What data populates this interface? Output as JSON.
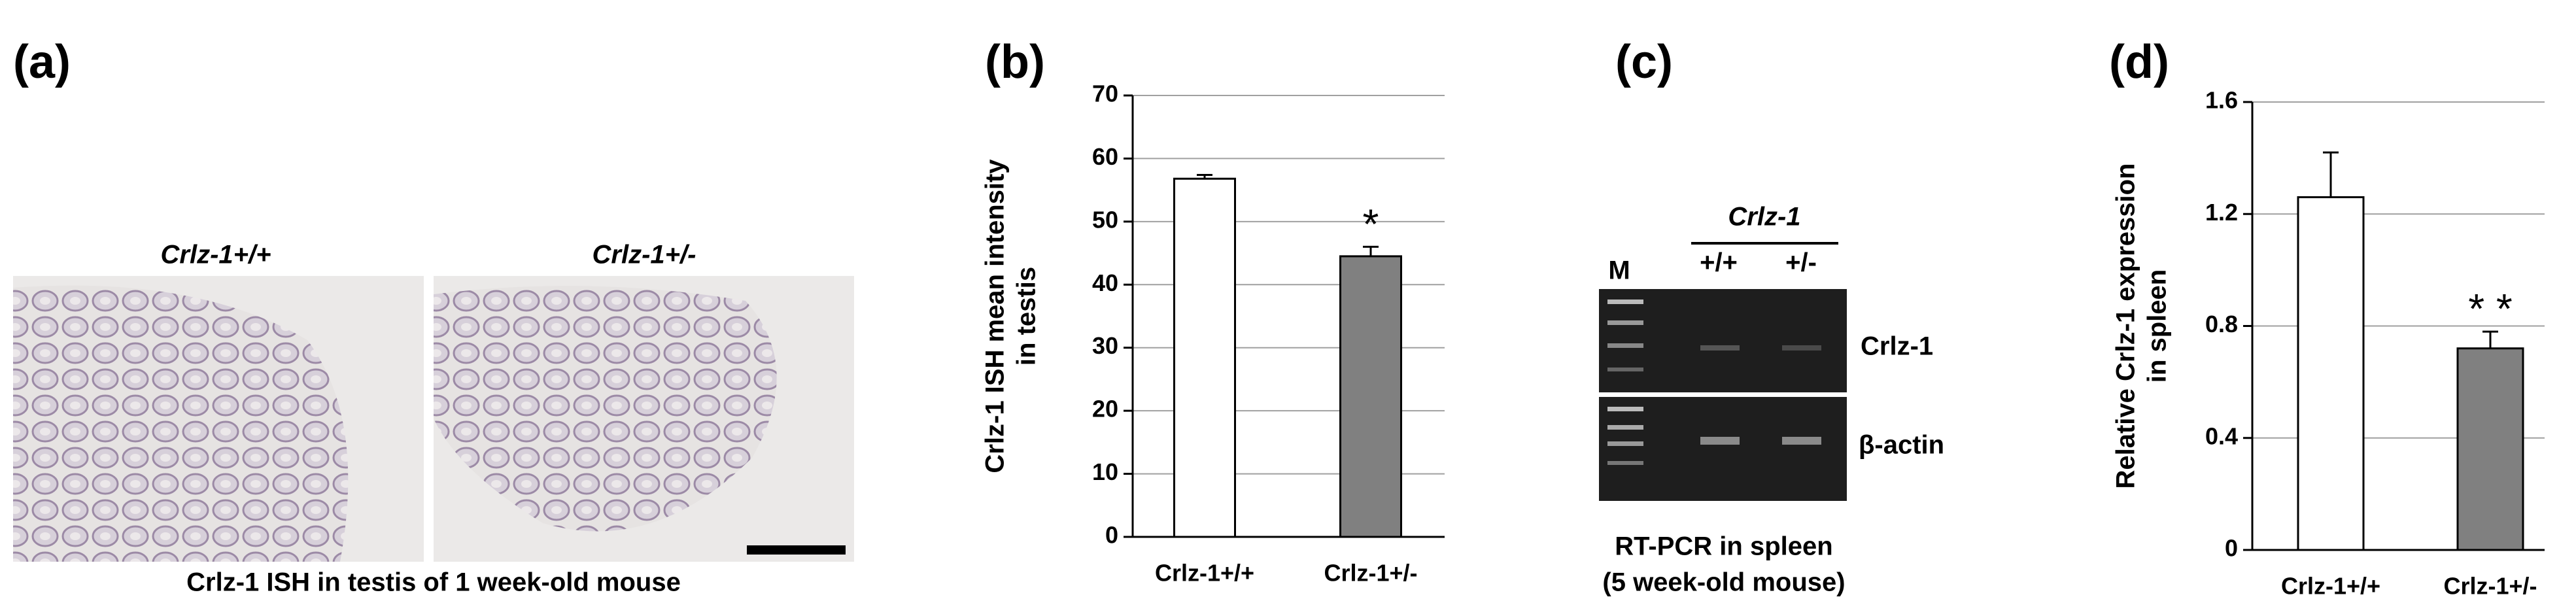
{
  "panel_a": {
    "label": "(a)",
    "image_titles": [
      "Crlz-1+/+",
      "Crlz-1+/-"
    ],
    "caption": "Crlz-1 ISH in testis of 1 week-old mouse"
  },
  "panel_c": {
    "label": "(c)",
    "gene_header": "Crlz-1",
    "marker_label": "M",
    "lane_labels": [
      "+/+",
      "+/-"
    ],
    "gel_labels": [
      "Crlz-1",
      "β-actin"
    ],
    "caption": [
      "RT-PCR in spleen",
      "(5 week-old mouse)"
    ]
  },
  "chart_data": [
    {
      "type": "bar",
      "label": "(b)",
      "ylabel": [
        "Crlz-1 ISH mean  intensity",
        "in testis"
      ],
      "categories": [
        "Crlz-1+/+",
        "Crlz-1+/-"
      ],
      "values": [
        56.8,
        44.5
      ],
      "errors": [
        0.6,
        1.5
      ],
      "colors": [
        "#ffffff",
        "#808080"
      ],
      "significance": [
        null,
        "*"
      ],
      "ylim": [
        0,
        70
      ],
      "yticks": [
        0,
        10,
        20,
        30,
        40,
        50,
        60,
        70
      ],
      "grid": true
    },
    {
      "type": "bar",
      "label": "(d)",
      "ylabel": [
        "Relative  Crlz-1 expression",
        "in spleen"
      ],
      "categories": [
        "Crlz-1+/+",
        "Crlz-1+/-"
      ],
      "values": [
        1.26,
        0.72
      ],
      "errors": [
        0.16,
        0.06
      ],
      "colors": [
        "#ffffff",
        "#808080"
      ],
      "significance": [
        null,
        "* *"
      ],
      "ylim": [
        0,
        1.6
      ],
      "yticks": [
        0,
        0.4,
        0.8,
        1.2,
        1.6
      ],
      "grid": true
    }
  ]
}
